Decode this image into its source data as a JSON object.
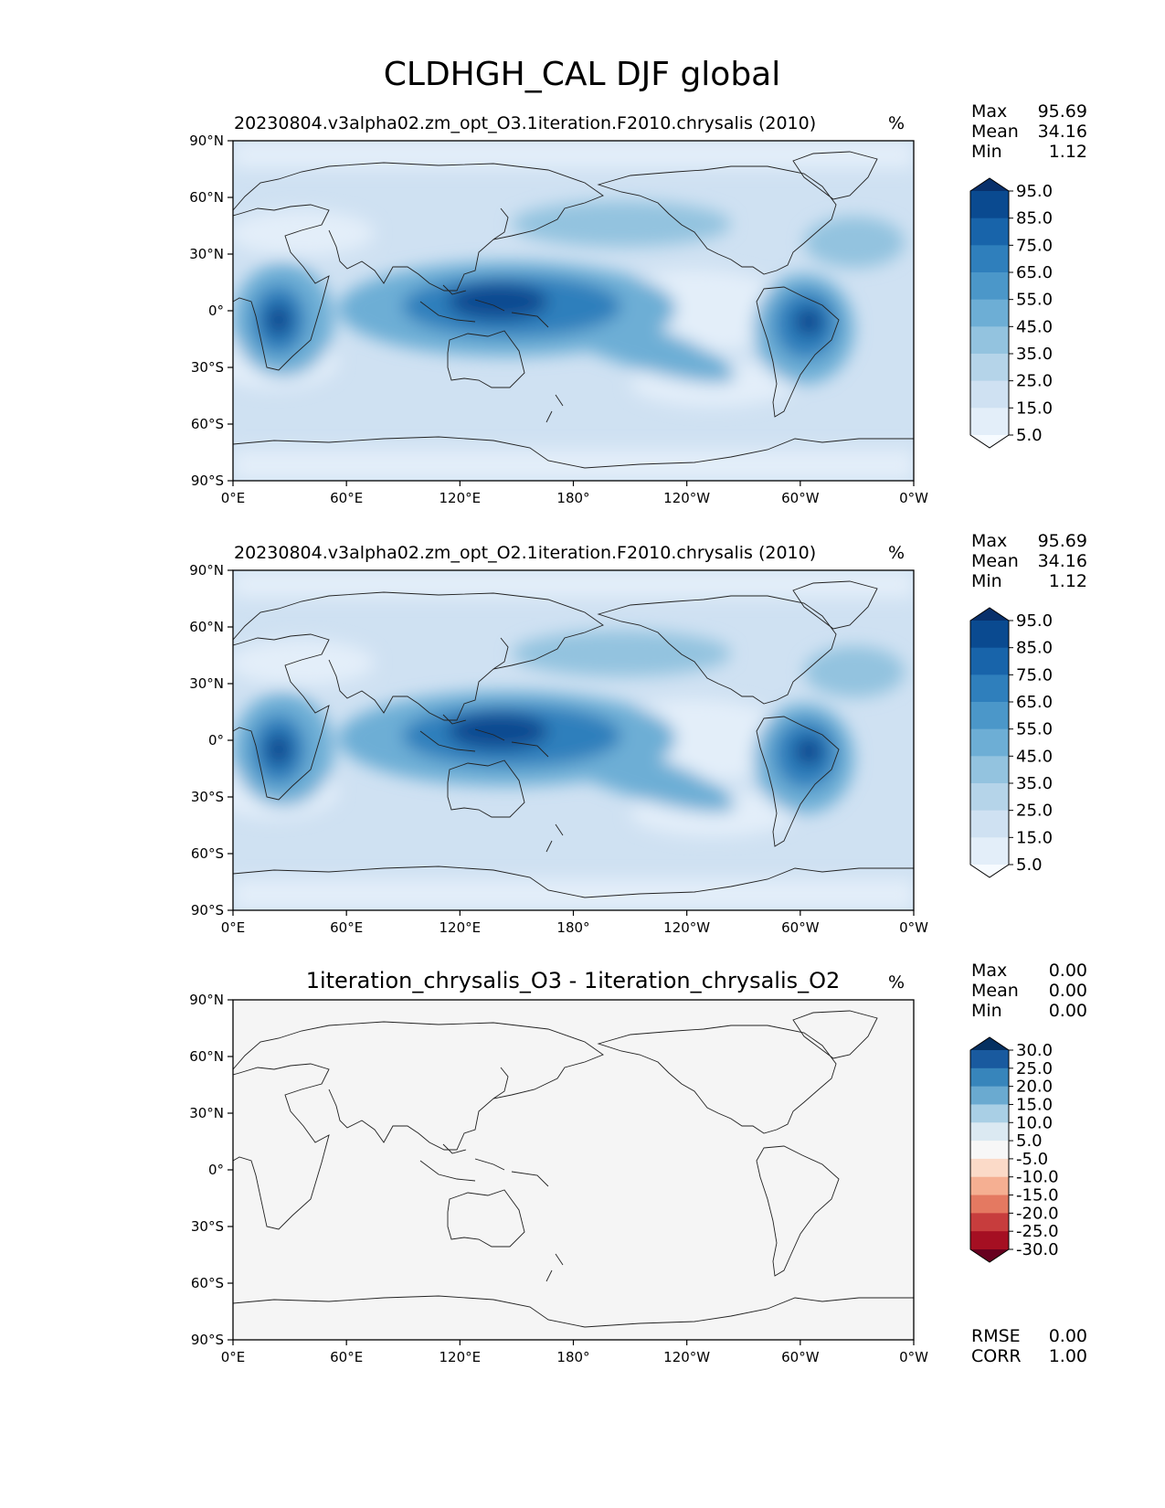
{
  "figure": {
    "title": "CLDHGH_CAL DJF global"
  },
  "colors": {
    "main_levels": [
      "#f7fbff",
      "#e3eef9",
      "#cfe1f2",
      "#b5d4e9",
      "#93c3df",
      "#6daed5",
      "#4b97c9",
      "#2f7fbc",
      "#1864aa",
      "#0a4a90",
      "#08306b"
    ],
    "diff_levels": [
      "#67001f",
      "#a50f22",
      "#c73d3d",
      "#e47961",
      "#f5af92",
      "#fbdac8",
      "#f7f7f7",
      "#dbe9f2",
      "#a9cfe5",
      "#6aaad0",
      "#3785bb",
      "#195a9f",
      "#053061"
    ],
    "diff_background": "#f5f5f5",
    "coast": "#222222"
  },
  "chart_data": [
    {
      "type": "contour-map",
      "title": "20230804.v3alpha02.zm_opt_O3.1iteration.F2010.chrysalis (2010)",
      "units": "%",
      "stats": [
        {
          "label": "Max",
          "value": "95.69"
        },
        {
          "label": "Mean",
          "value": "34.16"
        },
        {
          "label": "Min",
          "value": "1.12"
        }
      ],
      "colorbar_ticks": [
        "95.0",
        "85.0",
        "75.0",
        "65.0",
        "55.0",
        "45.0",
        "35.0",
        "25.0",
        "15.0",
        "5.0"
      ],
      "xticks": [
        "0°E",
        "60°E",
        "120°E",
        "180°",
        "120°W",
        "60°W",
        "0°W"
      ],
      "yticks": [
        "90°N",
        "60°N",
        "30°N",
        "0°",
        "30°S",
        "60°S",
        "90°S"
      ],
      "xlim": [
        0,
        360
      ],
      "ylim": [
        -90,
        90
      ]
    },
    {
      "type": "contour-map",
      "title": "20230804.v3alpha02.zm_opt_O2.1iteration.F2010.chrysalis (2010)",
      "units": "%",
      "stats": [
        {
          "label": "Max",
          "value": "95.69"
        },
        {
          "label": "Mean",
          "value": "34.16"
        },
        {
          "label": "Min",
          "value": "1.12"
        }
      ],
      "colorbar_ticks": [
        "95.0",
        "85.0",
        "75.0",
        "65.0",
        "55.0",
        "45.0",
        "35.0",
        "25.0",
        "15.0",
        "5.0"
      ],
      "xticks": [
        "0°E",
        "60°E",
        "120°E",
        "180°",
        "120°W",
        "60°W",
        "0°W"
      ],
      "yticks": [
        "90°N",
        "60°N",
        "30°N",
        "0°",
        "30°S",
        "60°S",
        "90°S"
      ],
      "xlim": [
        0,
        360
      ],
      "ylim": [
        -90,
        90
      ]
    },
    {
      "type": "contour-map",
      "title": "1iteration_chrysalis_O3 - 1iteration_chrysalis_O2",
      "units": "%",
      "stats": [
        {
          "label": "Max",
          "value": "0.00"
        },
        {
          "label": "Mean",
          "value": "0.00"
        },
        {
          "label": "Min",
          "value": "0.00"
        }
      ],
      "colorbar_ticks": [
        "30.0",
        "25.0",
        "20.0",
        "15.0",
        "10.0",
        "5.0",
        "-5.0",
        "-10.0",
        "-15.0",
        "-20.0",
        "-25.0",
        "-30.0"
      ],
      "xticks": [
        "0°E",
        "60°E",
        "120°E",
        "180°",
        "120°W",
        "60°W",
        "0°W"
      ],
      "yticks": [
        "90°N",
        "60°N",
        "30°N",
        "0°",
        "30°S",
        "60°S",
        "90°S"
      ],
      "xlim": [
        0,
        360
      ],
      "ylim": [
        -90,
        90
      ],
      "metrics": [
        {
          "label": "RMSE",
          "value": "0.00"
        },
        {
          "label": "CORR",
          "value": "1.00"
        }
      ]
    }
  ]
}
